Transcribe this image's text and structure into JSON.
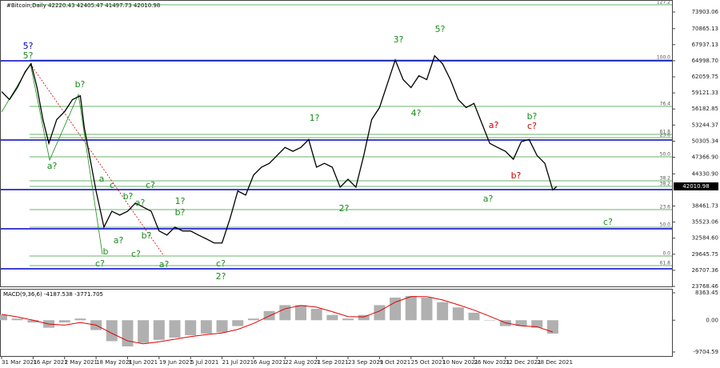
{
  "header": "#Bitcoin,Daily  42220.43 42405.47 41497.73 42010.98",
  "price_label": "42010.98",
  "fib_levels": [
    "127.2",
    "100.0",
    "76.4",
    "61.8",
    "23.6",
    "50.0",
    "38.2",
    "38.2",
    "23.6",
    "50.0",
    "0.0",
    "61.8"
  ],
  "wave_labels": [
    {
      "text": "5?",
      "color": "#0000cc"
    },
    {
      "text": "5?",
      "color": "#1a8c1a"
    },
    {
      "text": "b?",
      "color": "#1a8c1a"
    },
    {
      "text": "a?",
      "color": "#1a8c1a"
    },
    {
      "text": "a",
      "color": "#1a8c1a"
    },
    {
      "text": "c",
      "color": "#1a8c1a"
    },
    {
      "text": "b?",
      "color": "#1a8c1a"
    },
    {
      "text": "c?",
      "color": "#1a8c1a"
    },
    {
      "text": "a?",
      "color": "#1a8c1a"
    },
    {
      "text": "1?",
      "color": "#1a8c1a"
    },
    {
      "text": "b?",
      "color": "#1a8c1a"
    },
    {
      "text": "a?",
      "color": "#1a8c1a"
    },
    {
      "text": "b",
      "color": "#1a8c1a"
    },
    {
      "text": "c?",
      "color": "#1a8c1a"
    },
    {
      "text": "c?",
      "color": "#1a8c1a"
    },
    {
      "text": "b?",
      "color": "#1a8c1a"
    },
    {
      "text": "a?",
      "color": "#1a8c1a"
    },
    {
      "text": "c?",
      "color": "#1a8c1a"
    },
    {
      "text": "2?",
      "color": "#1a8c1a"
    },
    {
      "text": "1?",
      "color": "#1a8c1a"
    },
    {
      "text": "2?",
      "color": "#1a8c1a"
    },
    {
      "text": "3?",
      "color": "#1a8c1a"
    },
    {
      "text": "4?",
      "color": "#1a8c1a"
    },
    {
      "text": "5?",
      "color": "#1a8c1a"
    },
    {
      "text": "a?",
      "color": "#cc0000"
    },
    {
      "text": "b?",
      "color": "#cc0000"
    },
    {
      "text": "c?",
      "color": "#cc0000"
    },
    {
      "text": "b?",
      "color": "#1a8c1a"
    },
    {
      "text": "a?",
      "color": "#1a8c1a"
    },
    {
      "text": "c?",
      "color": "#1a8c1a"
    }
  ],
  "chart_data": [
    {
      "type": "line",
      "color": "#000000",
      "x": [
        0,
        4,
        8,
        12,
        15,
        18,
        21,
        24,
        28,
        32,
        36,
        40,
        42,
        45,
        48,
        52,
        56,
        60,
        64,
        68,
        72,
        76,
        80,
        84,
        88,
        92,
        96,
        100,
        104,
        108,
        112,
        116,
        120,
        124,
        128,
        132,
        136,
        140,
        144,
        148,
        152,
        156,
        160,
        164,
        168,
        172,
        176,
        180,
        184,
        188,
        192,
        196,
        200,
        204,
        208,
        212,
        216,
        220,
        224,
        228,
        232,
        236,
        240,
        244,
        248,
        252,
        256,
        260,
        264,
        268,
        272,
        276,
        280,
        282
      ],
      "values": [
        59350,
        57900,
        60100,
        63000,
        64450,
        60100,
        54250,
        49900,
        54250,
        55700,
        57900,
        58600,
        52800,
        47000,
        41200,
        34600,
        37500,
        36800,
        37500,
        39000,
        38250,
        37500,
        33900,
        33150,
        34600,
        33900,
        33900,
        33150,
        32450,
        31700,
        31700,
        36100,
        41200,
        40450,
        44100,
        45550,
        46250,
        47700,
        49150,
        48450,
        49150,
        50600,
        45550,
        46250,
        45550,
        41900,
        43350,
        41900,
        47700,
        54250,
        56450,
        60800,
        65150,
        61550,
        60100,
        62250,
        61550,
        65900,
        64450,
        61550,
        57900,
        56450,
        57200,
        53550,
        49900,
        49150,
        48450,
        47000,
        50200,
        50600,
        47700,
        46250,
        41400,
        42011
      ],
      "xlim": [
        0,
        341
      ],
      "xticks": [
        {
          "value": 0,
          "label": "31 Mar 2021"
        },
        {
          "value": 16,
          "label": "16 Apr 2021"
        },
        {
          "value": 32,
          "label": "2 May 2021"
        },
        {
          "value": 48,
          "label": "18 May 2021"
        },
        {
          "value": 64,
          "label": "3 Jun 2021"
        },
        {
          "value": 80,
          "label": "19 Jun 2021"
        },
        {
          "value": 96,
          "label": "5 Jul 2021"
        },
        {
          "value": 112,
          "label": "21 Jul 2021"
        },
        {
          "value": 128,
          "label": "6 Aug 2021"
        },
        {
          "value": 144,
          "label": "22 Aug 2021"
        },
        {
          "value": 160,
          "label": "7 Sep 2021"
        },
        {
          "value": 176,
          "label": "23 Sep 2021"
        },
        {
          "value": 192,
          "label": "9 Oct 2021"
        },
        {
          "value": 208,
          "label": "25 Oct 2021"
        },
        {
          "value": 224,
          "label": "10 Nov 2021"
        },
        {
          "value": 240,
          "label": "26 Nov 2021"
        },
        {
          "value": 256,
          "label": "12 Dec 2021"
        },
        {
          "value": 272,
          "label": "28 Dec 2021"
        }
      ],
      "ylim": [
        23768.46,
        73903.06
      ],
      "yticks": [
        73903.06,
        70865.13,
        67937.13,
        {
          "value": 64998.7,
          "label": "64998.70"
        },
        62059.75,
        59121.33,
        56182.85,
        53244.37,
        50305.34,
        {
          "value": 47366.9,
          "label": "47366.90"
        },
        {
          "value": 44330.9,
          "label": "44330.90"
        },
        38461.73,
        35523.06,
        {
          "value": 32584.6,
          "label": "32584.60"
        },
        29645.75,
        26707.36,
        23768.46
      ]
    },
    {
      "type": "macd",
      "title": "MACD(9,36,6) -4187.538 -3771.705",
      "color": "#b0b0b0",
      "signal_color": "#e00000",
      "x": [
        0,
        8,
        16,
        24,
        32,
        40,
        48,
        56,
        64,
        72,
        80,
        88,
        96,
        104,
        112,
        120,
        128,
        136,
        144,
        152,
        160,
        168,
        176,
        184,
        192,
        200,
        208,
        216,
        224,
        232,
        240,
        248,
        256,
        264,
        272,
        280
      ],
      "values": [
        1600,
        500,
        -700,
        -2300,
        -700,
        500,
        -3000,
        -6400,
        -8000,
        -6900,
        -6000,
        -5300,
        -4600,
        -4100,
        -3700,
        -1800,
        500,
        2800,
        4600,
        4600,
        3500,
        1600,
        500,
        1600,
        4600,
        6900,
        7400,
        6900,
        5500,
        3900,
        2300,
        0,
        -1800,
        -1800,
        -2300,
        -4100
      ],
      "signal": [
        1800,
        1000,
        0,
        -1200,
        -1500,
        -700,
        -1500,
        -4000,
        -6300,
        -7200,
        -6600,
        -5800,
        -5000,
        -4400,
        -3900,
        -2800,
        -1000,
        1300,
        3500,
        4500,
        4000,
        2600,
        1100,
        1000,
        2800,
        5500,
        7200,
        7200,
        6200,
        4700,
        3100,
        1200,
        -800,
        -1700,
        -2000,
        -3600
      ],
      "xlim": [
        0,
        341
      ],
      "ylim": [
        -9704.59,
        8363.45
      ],
      "yticks": [
        8363.45,
        {
          "value": 0,
          "label": "0.00"
        },
        -9704.59
      ]
    }
  ]
}
